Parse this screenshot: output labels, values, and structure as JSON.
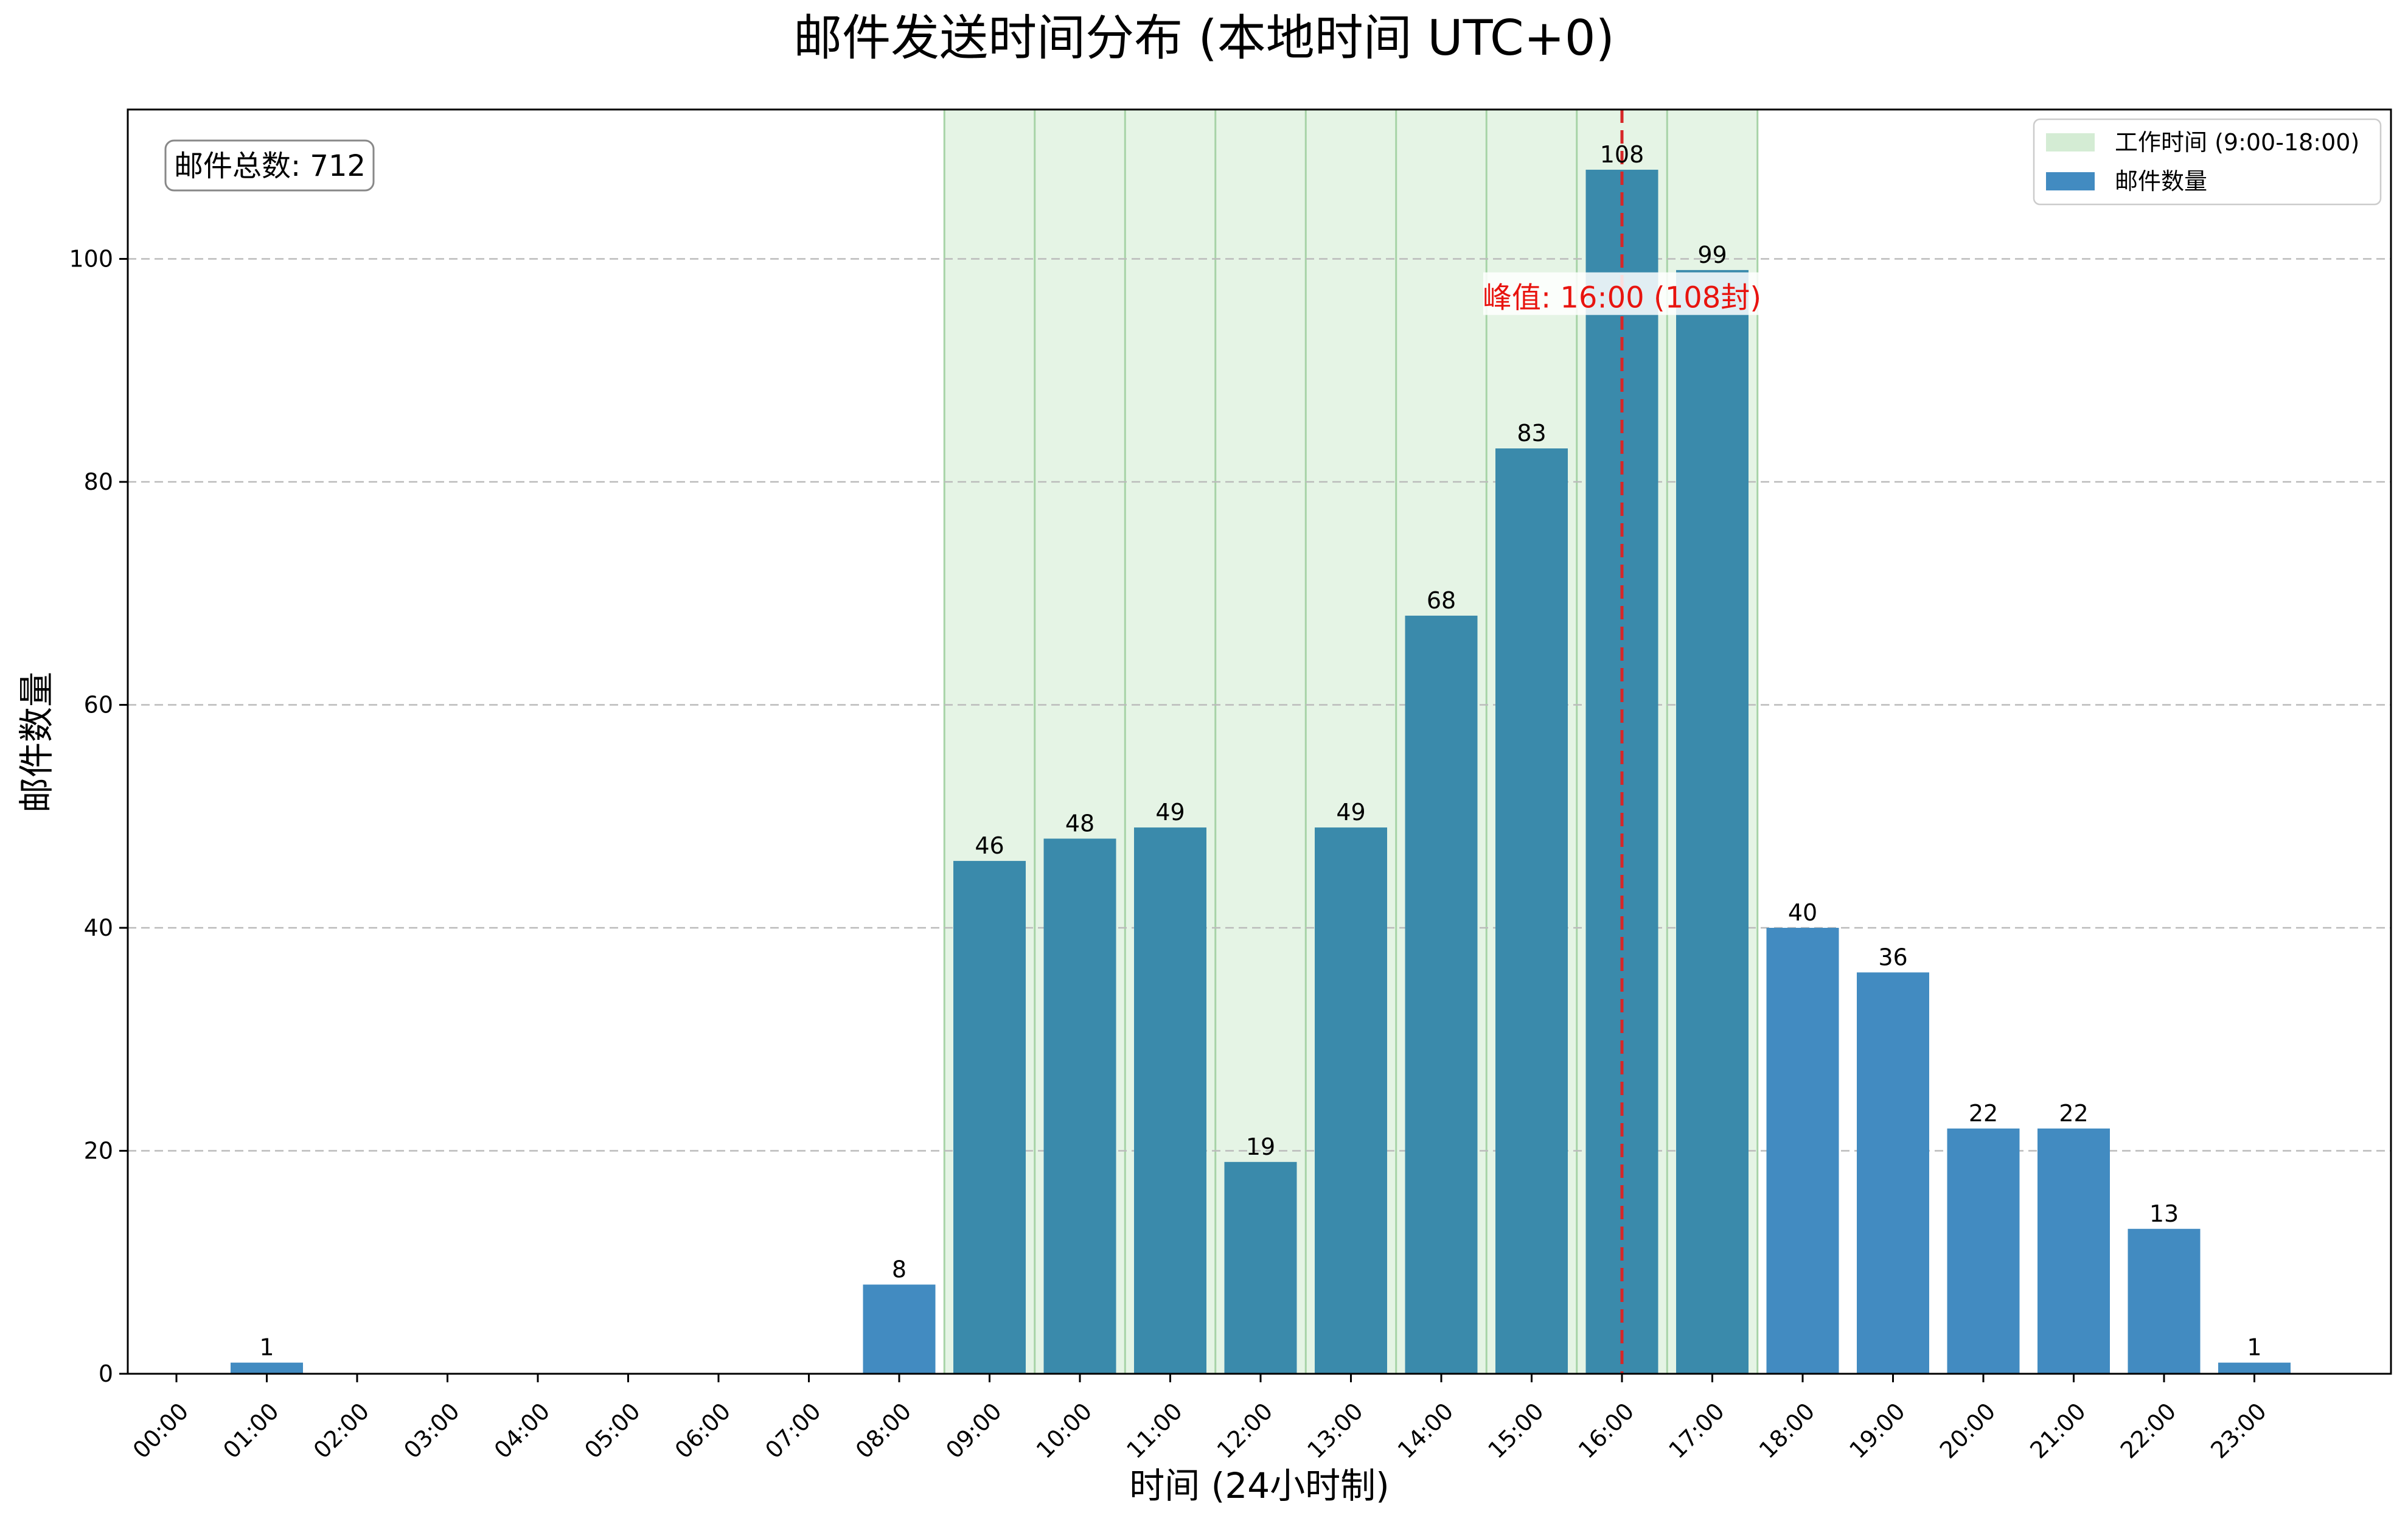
{
  "chart_data": {
    "type": "bar",
    "title": "邮件发送时间分布 (本地时间 UTC+0)",
    "xlabel": "时间 (24小时制)",
    "ylabel": "邮件数量",
    "categories": [
      "00:00",
      "01:00",
      "02:00",
      "03:00",
      "04:00",
      "05:00",
      "06:00",
      "07:00",
      "08:00",
      "09:00",
      "10:00",
      "11:00",
      "12:00",
      "13:00",
      "14:00",
      "15:00",
      "16:00",
      "17:00",
      "18:00",
      "19:00",
      "20:00",
      "21:00",
      "22:00",
      "23:00"
    ],
    "series": [
      {
        "name": "邮件数量",
        "values": [
          0,
          1,
          0,
          0,
          0,
          0,
          0,
          0,
          8,
          46,
          48,
          49,
          19,
          49,
          68,
          83,
          108,
          99,
          40,
          36,
          22,
          22,
          13,
          1
        ]
      }
    ],
    "data_labels": [
      "",
      "1",
      "",
      "",
      "",
      "",
      "",
      "",
      "8",
      "46",
      "48",
      "49",
      "19",
      "49",
      "68",
      "83",
      "108",
      "99",
      "40",
      "36",
      "22",
      "22",
      "13",
      "1"
    ],
    "y_ticks": [
      0,
      20,
      40,
      60,
      80,
      100
    ],
    "y_tick_labels": [
      "0",
      "20",
      "40",
      "60",
      "80",
      "100"
    ],
    "ylim": [
      0,
      113.4
    ],
    "grid": {
      "y": true,
      "style": "dashed"
    },
    "work_hours": {
      "label": "工作时间 (9:00-18:00)",
      "start_hour": 9,
      "end_hour": 17
    },
    "peak": {
      "hour": 16,
      "value": 108,
      "label": "峰值: 16:00 (108封)"
    },
    "total_label": "邮件总数: 712",
    "legend": {
      "placement": "top-right",
      "entries": [
        "工作时间 (9:00-18:00)",
        "邮件数量"
      ]
    },
    "colors": {
      "bar": "#428bc1",
      "bar_in_work_hours": "#3a8aab",
      "work_hours_band": "#d4ecd4",
      "work_hours_lines": "#a7d3a7",
      "peak_line": "#d62728",
      "peak_text": "#e8140f",
      "grid": "#bbbbbb"
    }
  }
}
